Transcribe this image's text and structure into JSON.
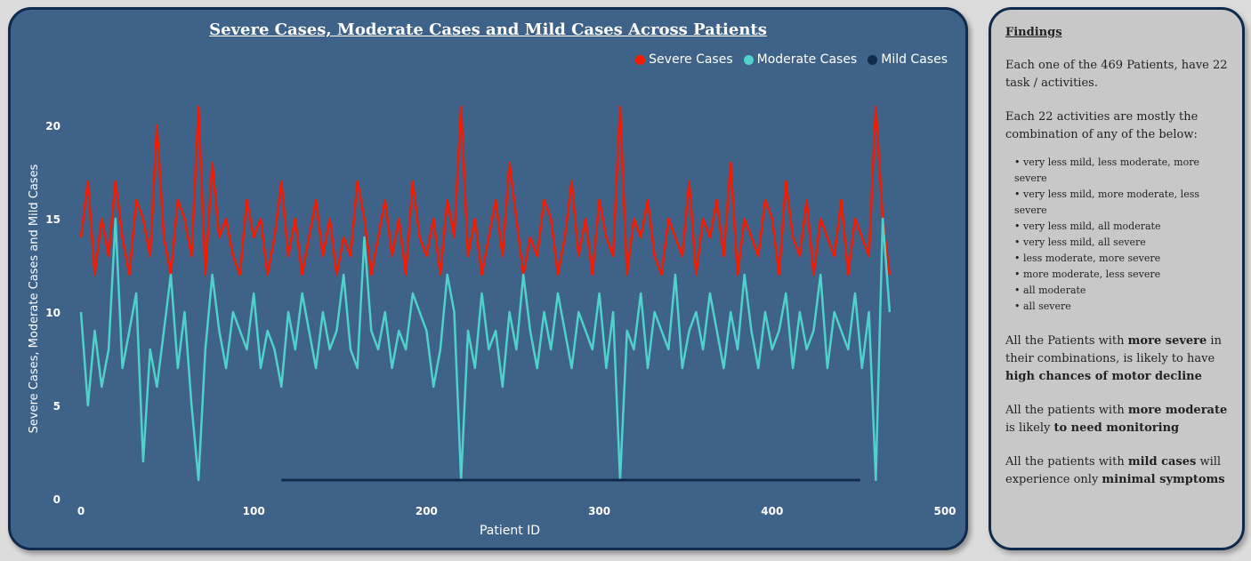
{
  "chart_data": {
    "type": "line",
    "title": "Severe Cases, Moderate Cases and Mild Cases Across Patients",
    "xlabel": "Patient ID",
    "ylabel": "Severe Cases, Moderate Cases and Mild Cases",
    "xlim": [
      0,
      500
    ],
    "ylim": [
      0,
      22
    ],
    "xticks": [
      "0",
      "100",
      "200",
      "300",
      "400",
      "500"
    ],
    "yticks": [
      "0",
      "5",
      "10",
      "15",
      "20"
    ],
    "legend": "top-right",
    "grid": false,
    "series": [
      {
        "name": "Severe Cases",
        "color": "#f21b00",
        "x": [
          0,
          4,
          8,
          12,
          16,
          20,
          24,
          28,
          32,
          36,
          40,
          44,
          48,
          52,
          56,
          60,
          64,
          68,
          72,
          76,
          80,
          84,
          88,
          92,
          96,
          100,
          104,
          108,
          112,
          116,
          120,
          124,
          128,
          132,
          136,
          140,
          144,
          148,
          152,
          156,
          160,
          164,
          168,
          172,
          176,
          180,
          184,
          188,
          192,
          196,
          200,
          204,
          208,
          212,
          216,
          220,
          224,
          228,
          232,
          236,
          240,
          244,
          248,
          252,
          256,
          260,
          264,
          268,
          272,
          276,
          280,
          284,
          288,
          292,
          296,
          300,
          304,
          308,
          312,
          316,
          320,
          324,
          328,
          332,
          336,
          340,
          344,
          348,
          352,
          356,
          360,
          364,
          368,
          372,
          376,
          380,
          384,
          388,
          392,
          396,
          400,
          404,
          408,
          412,
          416,
          420,
          424,
          428,
          432,
          436,
          440,
          444,
          448,
          452,
          456,
          460,
          464,
          468
        ],
        "values": [
          14,
          17,
          12,
          15,
          13,
          17,
          14,
          12,
          16,
          15,
          13,
          20,
          14,
          12,
          16,
          15,
          13,
          21,
          12,
          18,
          14,
          15,
          13,
          12,
          16,
          14,
          15,
          12,
          14,
          17,
          13,
          15,
          12,
          14,
          16,
          13,
          15,
          12,
          14,
          13,
          17,
          15,
          12,
          14,
          16,
          13,
          15,
          12,
          17,
          14,
          13,
          15,
          12,
          16,
          14,
          21,
          13,
          15,
          12,
          14,
          16,
          13,
          18,
          15,
          12,
          14,
          13,
          16,
          15,
          12,
          14,
          17,
          13,
          15,
          12,
          16,
          14,
          13,
          21,
          12,
          15,
          14,
          16,
          13,
          12,
          15,
          14,
          13,
          17,
          12,
          15,
          14,
          16,
          13,
          18,
          12,
          15,
          14,
          13,
          16,
          15,
          12,
          17,
          14,
          13,
          16,
          12,
          15,
          14,
          13,
          16,
          12,
          15,
          14,
          13,
          21,
          15,
          12
        ]
      },
      {
        "name": "Moderate Cases",
        "color": "#4fd1cc",
        "x": [
          0,
          4,
          8,
          12,
          16,
          20,
          24,
          28,
          32,
          36,
          40,
          44,
          48,
          52,
          56,
          60,
          64,
          68,
          72,
          76,
          80,
          84,
          88,
          92,
          96,
          100,
          104,
          108,
          112,
          116,
          120,
          124,
          128,
          132,
          136,
          140,
          144,
          148,
          152,
          156,
          160,
          164,
          168,
          172,
          176,
          180,
          184,
          188,
          192,
          196,
          200,
          204,
          208,
          212,
          216,
          220,
          224,
          228,
          232,
          236,
          240,
          244,
          248,
          252,
          256,
          260,
          264,
          268,
          272,
          276,
          280,
          284,
          288,
          292,
          296,
          300,
          304,
          308,
          312,
          316,
          320,
          324,
          328,
          332,
          336,
          340,
          344,
          348,
          352,
          356,
          360,
          364,
          368,
          372,
          376,
          380,
          384,
          388,
          392,
          396,
          400,
          404,
          408,
          412,
          416,
          420,
          424,
          428,
          432,
          436,
          440,
          444,
          448,
          452,
          456,
          460,
          464,
          468
        ],
        "values": [
          10,
          5,
          9,
          6,
          8,
          15,
          7,
          9,
          11,
          2,
          8,
          6,
          9,
          12,
          7,
          10,
          5,
          1,
          8,
          12,
          9,
          7,
          10,
          9,
          8,
          11,
          7,
          9,
          8,
          6,
          10,
          8,
          11,
          9,
          7,
          10,
          8,
          9,
          12,
          8,
          7,
          14,
          9,
          8,
          10,
          7,
          9,
          8,
          11,
          10,
          9,
          6,
          8,
          12,
          10,
          1,
          9,
          7,
          11,
          8,
          9,
          6,
          10,
          8,
          12,
          9,
          7,
          10,
          8,
          11,
          9,
          7,
          10,
          9,
          8,
          11,
          7,
          10,
          1,
          9,
          8,
          11,
          7,
          10,
          9,
          8,
          12,
          7,
          9,
          10,
          8,
          11,
          9,
          7,
          10,
          8,
          12,
          9,
          7,
          10,
          8,
          9,
          11,
          7,
          10,
          8,
          9,
          12,
          7,
          10,
          9,
          8,
          11,
          7,
          10,
          1,
          15,
          10
        ]
      },
      {
        "name": "Mild Cases",
        "color": "#0f2a4c",
        "x": [
          116,
          451
        ],
        "values": [
          1,
          1
        ]
      }
    ]
  },
  "findings": {
    "heading": "Findings",
    "p1": "Each one of the 469 Patients, have 22 task / activities.",
    "p2": "Each 22 activities are mostly the combination of any of the below:",
    "list": [
      "very less mild, less moderate, more severe",
      "very less mild, more moderate, less severe",
      "very less mild, all moderate",
      "very less mild, all severe",
      "less moderate, more severe",
      "more moderate, less severe",
      "all moderate",
      "all severe"
    ],
    "p3_a": "All the Patients with ",
    "p3_b": "more severe",
    "p3_c": " in their combinations, is likely to have ",
    "p3_d": "high chances of motor decline",
    "p4_a": "All the patients with ",
    "p4_b": "more moderate",
    "p4_c": " is likely ",
    "p4_d": "to need monitoring",
    "p5_a": "All the patients with ",
    "p5_b": "mild cases",
    "p5_c": " will experience only ",
    "p5_d": "minimal symptoms"
  }
}
